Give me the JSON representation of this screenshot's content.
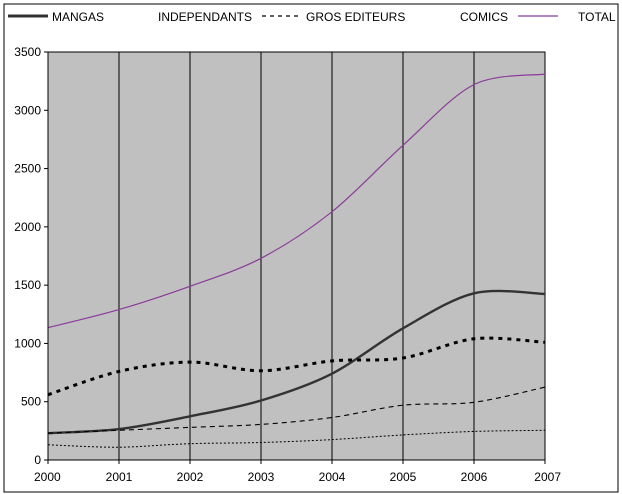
{
  "chart_data": {
    "type": "line",
    "title": "",
    "xlabel": "",
    "ylabel": "",
    "x": [
      2000,
      2001,
      2002,
      2003,
      2004,
      2005,
      2006,
      2007
    ],
    "x_tick_labels": [
      "2000",
      "2001",
      "2002",
      "2003",
      "2004",
      "2005",
      "2006",
      "2007"
    ],
    "ylim": [
      0,
      3500
    ],
    "y_ticks": [
      0,
      500,
      1000,
      1500,
      2000,
      2500,
      3000,
      3500
    ],
    "y_tick_labels": [
      "0",
      "500",
      "1000",
      "1500",
      "2000",
      "2500",
      "3000",
      "3500"
    ],
    "grid": "vertical",
    "plot_background": "#c0c0c0",
    "legend_position": "top",
    "series": [
      {
        "name": "MANGAS",
        "color": "#333333",
        "style": "solid-thick",
        "values": [
          230,
          265,
          375,
          510,
          740,
          1130,
          1430,
          1425
        ]
      },
      {
        "name": "INDEPENDANTS",
        "color": "#000000",
        "style": "dashed-thin",
        "values": [
          230,
          255,
          280,
          305,
          365,
          470,
          495,
          625
        ]
      },
      {
        "name": "GROS EDITEURS",
        "color": "#000000",
        "style": "dashed-thick",
        "values": [
          560,
          760,
          840,
          765,
          850,
          875,
          1040,
          1010
        ]
      },
      {
        "name": "COMICS",
        "color": "#000000",
        "style": "dotted",
        "values": [
          130,
          110,
          140,
          150,
          175,
          215,
          245,
          255
        ]
      },
      {
        "name": "TOTAL",
        "color": "#8b3a9b",
        "style": "solid-thin",
        "values": [
          1135,
          1290,
          1490,
          1730,
          2130,
          2700,
          3220,
          3310
        ]
      }
    ],
    "legend": {
      "mangas": "MANGAS",
      "independants": "INDEPENDANTS",
      "gros_editeurs": "GROS EDITEURS",
      "comics": "COMICS",
      "total": "TOTAL"
    }
  }
}
